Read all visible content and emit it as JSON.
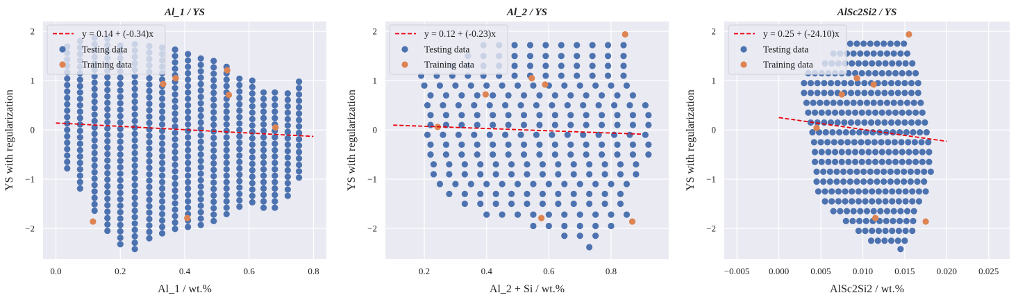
{
  "colors": {
    "panel_bg": "#eaeaf2",
    "grid": "#ffffff",
    "testing": "#4c72b0",
    "training": "#dd8452",
    "fit_line": "#e8000b"
  },
  "legend_labels": {
    "testing": "Testing data",
    "training": "Training data"
  },
  "chart_data": [
    {
      "type": "scatter",
      "title": "Al_1 / YS",
      "xlabel": "Al_1 / wt.%",
      "ylabel": "YS with regularization",
      "xlim": [
        -0.04,
        0.84
      ],
      "ylim": [
        -2.62,
        2.2
      ],
      "xticks": [
        "0.0",
        "0.2",
        "0.4",
        "0.6",
        "0.8"
      ],
      "xtick_values": [
        0.0,
        0.2,
        0.4,
        0.6,
        0.8
      ],
      "yticks": [
        "2",
        "1",
        "0",
        "−1",
        "−2"
      ],
      "ytick_values": [
        2,
        1,
        0,
        -1,
        -2
      ],
      "grid": true,
      "legend_position": "top-left",
      "fit": {
        "label": "y = 0.14 + (-0.34)x",
        "intercept": 0.14,
        "slope": -0.34,
        "x_range": [
          0.0,
          0.8
        ]
      },
      "training_points": [
        [
          0.115,
          -1.86
        ],
        [
          0.333,
          0.93
        ],
        [
          0.372,
          1.05
        ],
        [
          0.408,
          -1.79
        ],
        [
          0.532,
          1.21
        ],
        [
          0.537,
          0.71
        ],
        [
          0.682,
          0.05
        ]
      ],
      "testing_grid": {
        "columns": [
          [
            0.035,
            -0.78,
            1.72
          ],
          [
            0.075,
            -1.19,
            1.81
          ],
          [
            0.12,
            -1.64,
            1.88
          ],
          [
            0.16,
            -2.05,
            1.85
          ],
          [
            0.2,
            -2.32,
            1.82
          ],
          [
            0.245,
            -2.42,
            1.78
          ],
          [
            0.29,
            -2.2,
            1.74
          ],
          [
            0.33,
            -2.1,
            1.7
          ],
          [
            0.37,
            -2.01,
            1.66
          ],
          [
            0.41,
            -1.97,
            1.62
          ],
          [
            0.45,
            -1.93,
            1.55
          ],
          [
            0.49,
            -1.85,
            1.47
          ],
          [
            0.53,
            -1.71,
            1.36
          ],
          [
            0.57,
            -1.56,
            1.16
          ],
          [
            0.61,
            -1.47,
            1.02
          ],
          [
            0.645,
            -1.58,
            0.87
          ],
          [
            0.68,
            -1.58,
            0.79
          ],
          [
            0.72,
            -1.34,
            0.8
          ],
          [
            0.755,
            -0.97,
            1.03
          ]
        ],
        "step": 0.13
      }
    },
    {
      "type": "scatter",
      "title": "Al_2 / YS",
      "xlabel": "Al_2 + Si / wt.%",
      "ylabel": "YS with regularization",
      "xlim": [
        0.075,
        0.985
      ],
      "ylim": [
        -2.62,
        2.2
      ],
      "xticks": [
        "0.2",
        "0.4",
        "0.6",
        "0.8"
      ],
      "xtick_values": [
        0.2,
        0.4,
        0.6,
        0.8
      ],
      "yticks": [
        "2",
        "1",
        "0",
        "−1",
        "−2"
      ],
      "ytick_values": [
        2,
        1,
        0,
        -1,
        -2
      ],
      "grid": true,
      "legend_position": "top-left",
      "fit": {
        "label": "y = 0.12 + (-0.23)x",
        "intercept": 0.12,
        "slope": -0.23,
        "x_range": [
          0.1,
          0.9
        ]
      },
      "training_points": [
        [
          0.243,
          0.06
        ],
        [
          0.397,
          0.72
        ],
        [
          0.545,
          1.05
        ],
        [
          0.576,
          -1.79
        ],
        [
          0.588,
          0.92
        ],
        [
          0.845,
          1.94
        ],
        [
          0.868,
          -1.86
        ]
      ],
      "testing_rows": {
        "rows": [
          [
            1.72,
            0.39,
            0.845
          ],
          [
            1.5,
            0.34,
            0.855
          ],
          [
            1.3,
            0.29,
            0.87
          ],
          [
            1.1,
            0.19,
            0.88
          ],
          [
            0.9,
            0.2,
            0.895
          ],
          [
            0.7,
            0.22,
            0.91
          ],
          [
            0.5,
            0.21,
            0.92
          ],
          [
            0.3,
            0.22,
            0.93
          ],
          [
            0.1,
            0.22,
            0.935
          ],
          [
            -0.1,
            0.21,
            0.93
          ],
          [
            -0.3,
            0.22,
            0.94
          ],
          [
            -0.5,
            0.22,
            0.935
          ],
          [
            -0.7,
            0.23,
            0.92
          ],
          [
            -0.9,
            0.23,
            0.905
          ],
          [
            -1.1,
            0.25,
            0.89
          ],
          [
            -1.3,
            0.28,
            0.875
          ],
          [
            -1.5,
            0.33,
            0.865
          ],
          [
            -1.72,
            0.4,
            0.85
          ],
          [
            -1.95,
            0.55,
            0.83
          ],
          [
            -2.15,
            0.65,
            0.78
          ],
          [
            -2.38,
            0.73,
            0.76
          ]
        ],
        "step": 0.05
      }
    },
    {
      "type": "scatter",
      "title": "AlSc2Si2 / YS",
      "xlabel": "AlSc2Si2 / wt.%",
      "ylabel": "YS with regularization",
      "xlim": [
        -0.0065,
        0.0275
      ],
      "ylim": [
        -2.62,
        2.2
      ],
      "xticks": [
        "−0.005",
        "0.000",
        "0.005",
        "0.010",
        "0.015",
        "0.020",
        "0.025"
      ],
      "xtick_values": [
        -0.005,
        0.0,
        0.005,
        0.01,
        0.015,
        0.02,
        0.025
      ],
      "yticks": [
        "2",
        "1",
        "0",
        "−1",
        "−2"
      ],
      "ytick_values": [
        2,
        1,
        0,
        -1,
        -2
      ],
      "grid": true,
      "legend_position": "top-left",
      "fit": {
        "label": "y = 0.25 + (-24.10)x",
        "intercept": 0.25,
        "slope": -24.1,
        "x_range": [
          0.0,
          0.02
        ]
      },
      "training_points": [
        [
          0.0045,
          0.04
        ],
        [
          0.0075,
          0.72
        ],
        [
          0.0093,
          1.05
        ],
        [
          0.0115,
          -1.79
        ],
        [
          0.0113,
          0.92
        ],
        [
          0.0155,
          1.94
        ],
        [
          0.0175,
          -1.86
        ]
      ],
      "testing_rows": {
        "rows": [
          [
            1.75,
            0.0085,
            0.0155
          ],
          [
            1.55,
            0.0065,
            0.0158
          ],
          [
            1.35,
            0.0055,
            0.016
          ],
          [
            1.15,
            0.0035,
            0.0165
          ],
          [
            0.95,
            0.003,
            0.0168
          ],
          [
            0.75,
            0.003,
            0.017
          ],
          [
            0.55,
            0.0033,
            0.0173
          ],
          [
            0.35,
            0.0035,
            0.0175
          ],
          [
            0.15,
            0.0038,
            0.0175
          ],
          [
            -0.05,
            0.004,
            0.0178
          ],
          [
            -0.25,
            0.0042,
            0.018
          ],
          [
            -0.45,
            0.0043,
            0.0182
          ],
          [
            -0.65,
            0.0043,
            0.0185
          ],
          [
            -0.85,
            0.0045,
            0.0185
          ],
          [
            -1.05,
            0.0045,
            0.018
          ],
          [
            -1.25,
            0.0047,
            0.0175
          ],
          [
            -1.45,
            0.0055,
            0.017
          ],
          [
            -1.65,
            0.0065,
            0.0168
          ],
          [
            -1.85,
            0.008,
            0.0165
          ],
          [
            -2.05,
            0.0095,
            0.016
          ],
          [
            -2.25,
            0.011,
            0.0155
          ],
          [
            -2.42,
            0.0145,
            0.0152
          ]
        ],
        "step": 0.0008
      }
    }
  ]
}
